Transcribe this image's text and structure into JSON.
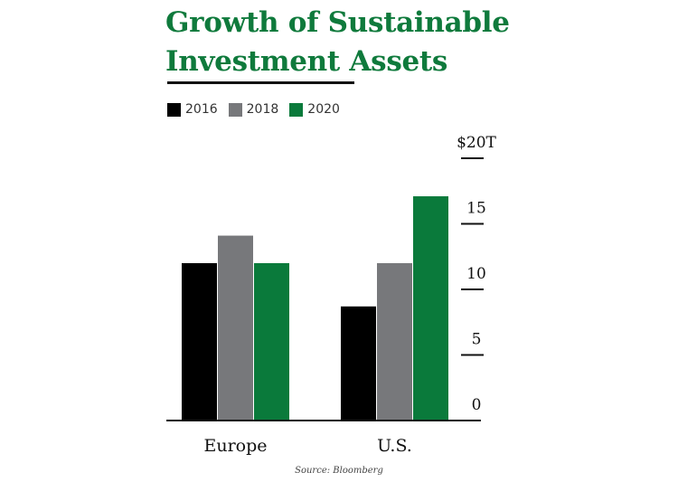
{
  "title_lines": [
    "Growth of Sustainable",
    "Investment Assets"
  ],
  "colors": {
    "title": "#0f7a3c",
    "2016": "#000000",
    "2018": "#77787b",
    "2020": "#0a7a3b",
    "axis": "#111111"
  },
  "legend": [
    {
      "label": "2016",
      "color": "#000000"
    },
    {
      "label": "2018",
      "color": "#77787b"
    },
    {
      "label": "2020",
      "color": "#0a7a3b"
    }
  ],
  "source": "Source: Bloomberg",
  "chart_data": {
    "type": "bar",
    "title": "Growth of Sustainable Investment Assets",
    "categories": [
      "Europe",
      "U.S."
    ],
    "series": [
      {
        "name": "2016",
        "values": [
          12.0,
          8.7
        ]
      },
      {
        "name": "2018",
        "values": [
          14.1,
          12.0
        ]
      },
      {
        "name": "2020",
        "values": [
          12.0,
          17.1
        ]
      }
    ],
    "y_ticks": [
      0,
      5,
      10,
      15,
      20
    ],
    "y_tick_labels": [
      "0",
      "5",
      "10",
      "15",
      "$20T"
    ],
    "ylim": [
      0,
      20
    ],
    "xlabel": "",
    "ylabel": "",
    "legend_position": "top-left",
    "grid": false
  }
}
